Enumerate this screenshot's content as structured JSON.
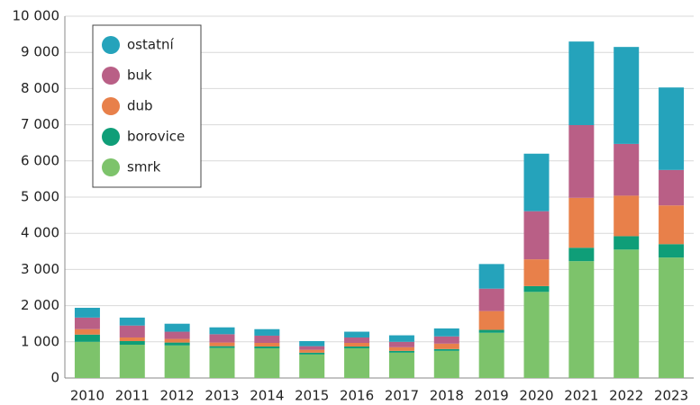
{
  "chart_data": {
    "type": "stacked_bar",
    "categories": [
      "2010",
      "2011",
      "2012",
      "2013",
      "2014",
      "2015",
      "2016",
      "2017",
      "2018",
      "2019",
      "2020",
      "2021",
      "2022",
      "2023"
    ],
    "series": [
      {
        "name": "smrk",
        "color": "#7dc36b",
        "values": [
          1000,
          920,
          900,
          830,
          820,
          650,
          820,
          700,
          750,
          1250,
          2380,
          3230,
          3550,
          3330
        ]
      },
      {
        "name": "borovice",
        "color": "#0f9e78",
        "values": [
          200,
          100,
          80,
          50,
          50,
          50,
          50,
          50,
          50,
          80,
          160,
          370,
          370,
          370
        ]
      },
      {
        "name": "dub",
        "color": "#e8804a",
        "values": [
          150,
          100,
          100,
          100,
          100,
          80,
          100,
          100,
          150,
          520,
          740,
          1380,
          1120,
          1070
        ]
      },
      {
        "name": "buk",
        "color": "#b95f86",
        "values": [
          320,
          330,
          200,
          230,
          200,
          100,
          150,
          150,
          200,
          620,
          1330,
          2010,
          1430,
          980
        ]
      },
      {
        "name": "ostatní",
        "color": "#25a3bb",
        "values": [
          270,
          220,
          220,
          190,
          180,
          140,
          160,
          180,
          220,
          680,
          1590,
          2310,
          2680,
          2280
        ]
      }
    ],
    "ylim": [
      0,
      10000
    ],
    "yticks": [
      0,
      {
        "value": 1000,
        "label": "1 000"
      },
      {
        "value": 2000,
        "label": "2 000"
      },
      {
        "value": 3000,
        "label": "3 000"
      },
      {
        "value": 4000,
        "label": "4 000"
      },
      {
        "value": 5000,
        "label": "5 000"
      },
      {
        "value": 6000,
        "label": "6 000"
      },
      {
        "value": 7000,
        "label": "7 000"
      },
      {
        "value": 8000,
        "label": "8 000"
      },
      {
        "value": 9000,
        "label": "9 000"
      },
      {
        "value": 10000,
        "label": "10 000"
      }
    ],
    "grid": true,
    "legend": "top-left"
  }
}
